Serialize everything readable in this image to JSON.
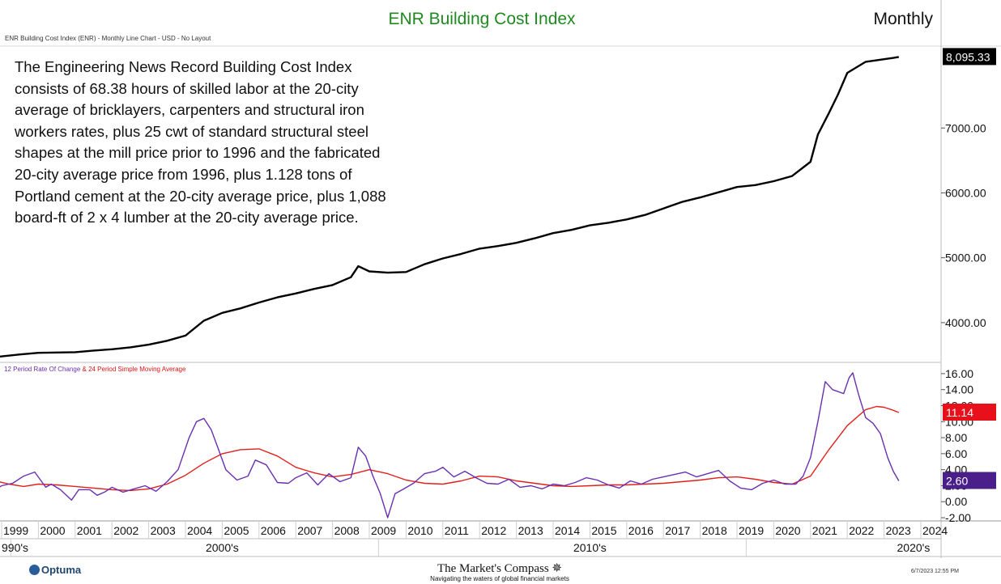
{
  "header": {
    "title": "ENR Building Cost Index",
    "period": "Monthly",
    "subheading": "ENR Building Cost Index (ENR) - Monthly Line Chart - USD - No Layout"
  },
  "description_lines": [
    "The Engineering News Record Building Cost Index",
    "consists of 68.38 hours of skilled labor at the 20-city",
    "average of bricklayers, carpenters and structural iron",
    "workers rates, plus 25 cwt of standard structural steel",
    "shapes at the mill price prior to 1996 and the fabricated",
    "20-city average price from 1996, plus 1.128 tons of",
    "Portland cement at the 20-city average price, plus 1,088",
    "board-ft of 2 x 4 lumber at the 20-city average price."
  ],
  "lower_panel": {
    "roc_label": "12 Period Rate Of Change",
    "joiner": " & ",
    "sma_label": "24 Period Simple Moving Average"
  },
  "x_axis": {
    "years": [
      "1999",
      "2000",
      "2001",
      "2002",
      "2003",
      "2004",
      "2005",
      "2006",
      "2007",
      "2008",
      "2009",
      "2010",
      "2011",
      "2012",
      "2013",
      "2014",
      "2015",
      "2016",
      "2017",
      "2018",
      "2019",
      "2020",
      "2021",
      "2022",
      "2023",
      "2024"
    ],
    "decades": [
      {
        "label": "990's",
        "year": 1998.5
      },
      {
        "label": "2000's",
        "year": 2005
      },
      {
        "label": "2010's",
        "year": 2015
      },
      {
        "label": "2020's",
        "year": 2023.8
      }
    ]
  },
  "footer": {
    "optuma": "Optuma",
    "brand": "The Market's Compass",
    "tagline": "Navigating the waters of global financial markets",
    "timestamp": "6/7/2023 12:55 PM"
  },
  "colors": {
    "price_line": "#000000",
    "roc_line": "#6a2fb0",
    "sma_line": "#e0201b",
    "title_green": "#1f8a1f"
  },
  "chart_data": [
    {
      "type": "line",
      "title": "ENR Building Cost Index",
      "ylim": [
        3400,
        8250
      ],
      "yticks": [
        "4000.00",
        "5000.00",
        "6000.00",
        "7000.00"
      ],
      "ytick_values": [
        4000,
        5000,
        6000,
        7000
      ],
      "last_value_label": "8,095.33",
      "last_value": 8095.33,
      "series": [
        {
          "x": [
            1998.83,
            1999.5,
            2000,
            2000.5,
            2001,
            2001.5,
            2002,
            2002.5,
            2003,
            2003.5,
            2004,
            2004.5,
            2005,
            2005.5,
            2006,
            2006.5,
            2007,
            2007.5,
            2008,
            2008.5,
            2008.7,
            2009,
            2009.5,
            2010,
            2010.5,
            2011,
            2011.5,
            2012,
            2012.5,
            2013,
            2013.5,
            2014,
            2014.5,
            2015,
            2015.5,
            2016,
            2016.5,
            2017,
            2017.5,
            2018,
            2018.5,
            2019,
            2019.5,
            2020,
            2020.5,
            2021,
            2021.2,
            2021.5,
            2021.75,
            2022,
            2022.5,
            2023,
            2023.25,
            2023.4
          ],
          "y": [
            3470,
            3510,
            3535,
            3540,
            3545,
            3570,
            3590,
            3620,
            3660,
            3720,
            3800,
            4030,
            4150,
            4220,
            4310,
            4390,
            4450,
            4520,
            4580,
            4700,
            4870,
            4790,
            4770,
            4780,
            4900,
            4990,
            5060,
            5140,
            5180,
            5230,
            5300,
            5380,
            5430,
            5500,
            5540,
            5590,
            5660,
            5760,
            5860,
            5930,
            6010,
            6090,
            6120,
            6180,
            6260,
            6480,
            6900,
            7230,
            7520,
            7850,
            8020,
            8060,
            8080,
            8095.33
          ]
        }
      ]
    },
    {
      "type": "line",
      "title": "12 Period Rate Of Change & 24 Period Simple Moving Average",
      "ylim": [
        -2.4,
        17
      ],
      "yticks": [
        "-2.00",
        "0.00",
        "2.00",
        "4.00",
        "6.00",
        "8.00",
        "10.00",
        "12.00",
        "14.00",
        "16.00"
      ],
      "ytick_values": [
        -2,
        0,
        2,
        4,
        6,
        8,
        10,
        12,
        14,
        16
      ],
      "series": [
        {
          "name": "12 Period Rate Of Change",
          "last_value_label": "2.60",
          "last_value": 2.6,
          "x": [
            1998.83,
            1999,
            1999.3,
            1999.6,
            1999.9,
            2000.2,
            2000.35,
            2000.6,
            2000.9,
            2001.1,
            2001.4,
            2001.6,
            2001.8,
            2002,
            2002.3,
            2002.6,
            2002.9,
            2003.2,
            2003.5,
            2003.8,
            2004.1,
            2004.3,
            2004.5,
            2004.7,
            2004.9,
            2005.1,
            2005.4,
            2005.7,
            2005.9,
            2006.2,
            2006.5,
            2006.8,
            2007,
            2007.3,
            2007.6,
            2007.9,
            2008.2,
            2008.5,
            2008.7,
            2008.9,
            2009.1,
            2009.3,
            2009.5,
            2009.7,
            2009.9,
            2010.2,
            2010.5,
            2010.8,
            2011,
            2011.3,
            2011.6,
            2011.9,
            2012.2,
            2012.5,
            2012.8,
            2013.1,
            2013.4,
            2013.7,
            2014,
            2014.3,
            2014.6,
            2014.9,
            2015.2,
            2015.5,
            2015.8,
            2016.1,
            2016.4,
            2016.7,
            2017,
            2017.3,
            2017.6,
            2017.9,
            2018.2,
            2018.5,
            2018.8,
            2019.1,
            2019.4,
            2019.7,
            2020,
            2020.3,
            2020.6,
            2020.8,
            2021,
            2021.2,
            2021.4,
            2021.6,
            2021.9,
            2022.05,
            2022.15,
            2022.3,
            2022.5,
            2022.7,
            2022.9,
            2023.1,
            2023.25,
            2023.4
          ],
          "y": [
            1.5,
            2,
            2.3,
            3.2,
            3.7,
            1.8,
            2.2,
            1.5,
            0.2,
            1.5,
            1.5,
            0.8,
            1.2,
            1.8,
            1.2,
            1.6,
            2,
            1.3,
            2.5,
            4,
            8,
            10,
            10.4,
            9,
            6.5,
            4,
            2.7,
            3.2,
            5.2,
            4.6,
            2.4,
            2.3,
            3,
            3.6,
            2.1,
            3.5,
            2.5,
            3,
            6.8,
            5.7,
            3.2,
            1,
            -2,
            1,
            1.5,
            2.3,
            3.5,
            3.8,
            4.3,
            3.1,
            3.8,
            3,
            2.3,
            2.2,
            2.8,
            1.8,
            2,
            1.6,
            2.2,
            2,
            2.4,
            3,
            2.7,
            2.1,
            1.7,
            2.6,
            2.2,
            2.8,
            3.1,
            3.4,
            3.7,
            3.1,
            3.5,
            3.9,
            2.6,
            1.7,
            1.5,
            2.3,
            2.7,
            2.2,
            2.2,
            3.2,
            5.5,
            10,
            15,
            14,
            13.5,
            15.5,
            16.1,
            13.5,
            10.5,
            9.8,
            8.5,
            5.5,
            3.8,
            2.6
          ]
        },
        {
          "name": "24 Period Simple Moving Average",
          "last_value_label": "11.14",
          "last_value": 11.14,
          "x": [
            1998.83,
            1999.2,
            1999.6,
            2000,
            2000.5,
            2001,
            2001.5,
            2002,
            2002.5,
            2003,
            2003.5,
            2004,
            2004.5,
            2005,
            2005.5,
            2006,
            2006.5,
            2007,
            2007.5,
            2008,
            2008.5,
            2009,
            2009.5,
            2010,
            2010.5,
            2011,
            2011.5,
            2012,
            2012.5,
            2013,
            2013.5,
            2014,
            2014.5,
            2015,
            2015.5,
            2016,
            2016.5,
            2017,
            2017.5,
            2018,
            2018.5,
            2019,
            2019.5,
            2020,
            2020.5,
            2021,
            2021.5,
            2022,
            2022.5,
            2022.8,
            2023,
            2023.2,
            2023.4
          ],
          "y": [
            2.6,
            2.2,
            1.9,
            2.2,
            2.1,
            1.9,
            1.7,
            1.5,
            1.4,
            1.6,
            2.2,
            3.3,
            4.8,
            6,
            6.5,
            6.6,
            5.7,
            4.3,
            3.6,
            3.1,
            3.4,
            4,
            3.5,
            2.7,
            2.3,
            2.2,
            2.6,
            3.2,
            3.1,
            2.6,
            2.3,
            2,
            1.9,
            2,
            2.1,
            2.1,
            2.2,
            2.3,
            2.5,
            2.7,
            3,
            3.1,
            2.8,
            2.4,
            2.2,
            3.2,
            6.5,
            9.5,
            11.5,
            11.9,
            11.8,
            11.5,
            11.14
          ]
        }
      ]
    }
  ]
}
